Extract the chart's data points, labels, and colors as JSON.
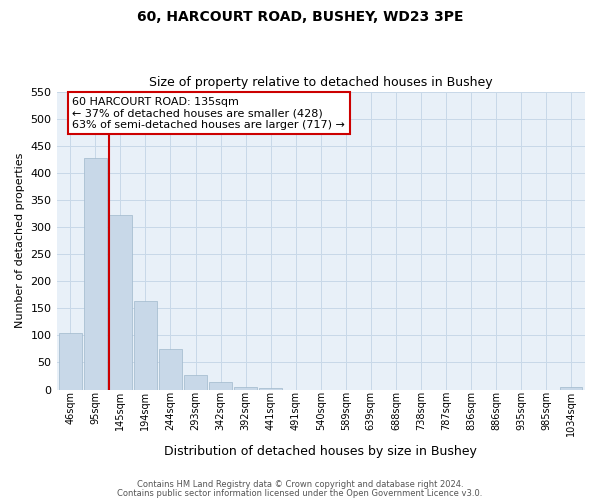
{
  "title": "60, HARCOURT ROAD, BUSHEY, WD23 3PE",
  "subtitle": "Size of property relative to detached houses in Bushey",
  "xlabel": "Distribution of detached houses by size in Bushey",
  "ylabel": "Number of detached properties",
  "bar_labels": [
    "46sqm",
    "95sqm",
    "145sqm",
    "194sqm",
    "244sqm",
    "293sqm",
    "342sqm",
    "392sqm",
    "441sqm",
    "491sqm",
    "540sqm",
    "589sqm",
    "639sqm",
    "688sqm",
    "738sqm",
    "787sqm",
    "836sqm",
    "886sqm",
    "935sqm",
    "985sqm",
    "1034sqm"
  ],
  "bar_values": [
    105,
    428,
    322,
    163,
    75,
    27,
    14,
    5,
    3,
    0,
    0,
    0,
    0,
    0,
    0,
    0,
    0,
    0,
    0,
    0,
    5
  ],
  "bar_color": "#c8d8e8",
  "bar_edgecolor": "#a0b8cc",
  "ax_facecolor": "#e8f0f8",
  "ylim": [
    0,
    550
  ],
  "yticks": [
    0,
    50,
    100,
    150,
    200,
    250,
    300,
    350,
    400,
    450,
    500,
    550
  ],
  "vline_x": 2,
  "vline_color": "#cc0000",
  "annotation_title": "60 HARCOURT ROAD: 135sqm",
  "annotation_line1": "← 37% of detached houses are smaller (428)",
  "annotation_line2": "63% of semi-detached houses are larger (717) →",
  "annotation_box_color": "#cc0000",
  "footnote1": "Contains HM Land Registry data © Crown copyright and database right 2024.",
  "footnote2": "Contains public sector information licensed under the Open Government Licence v3.0.",
  "background_color": "#ffffff",
  "grid_color": "#c8d8e8"
}
